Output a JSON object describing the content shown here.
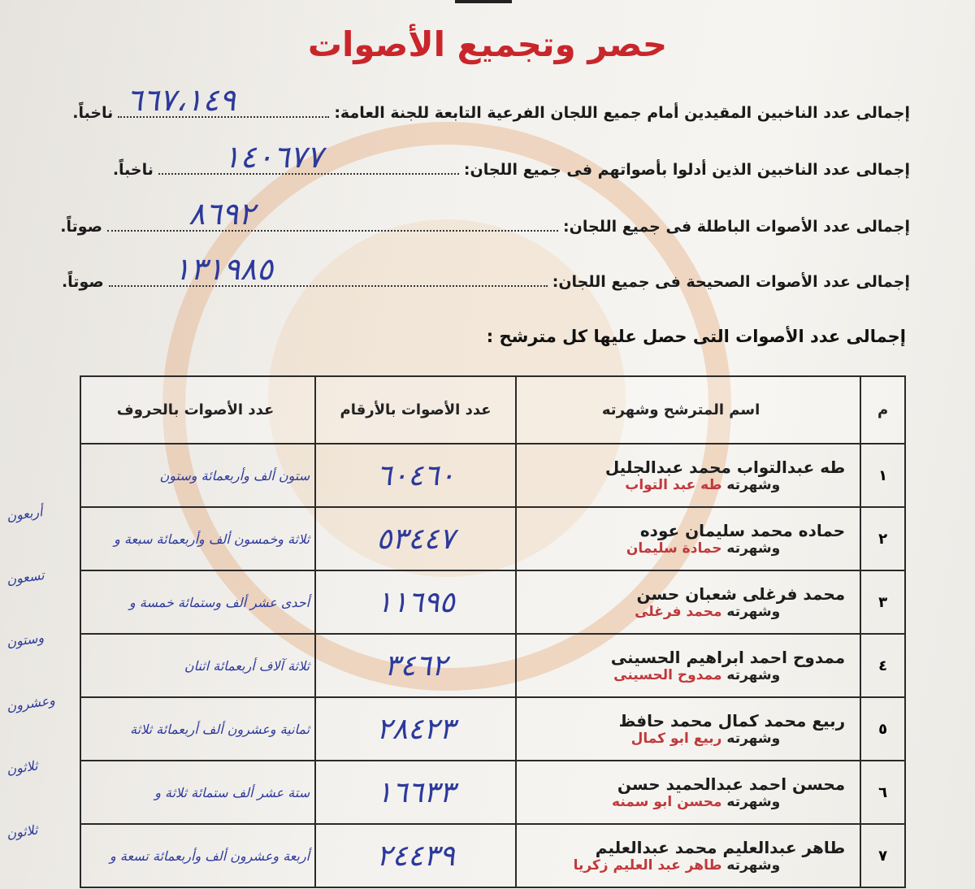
{
  "title": "حصر وتجميع الأصوات",
  "summary": [
    {
      "label": "إجمالى عدد الناخبين المقيدين  أمام جميع اللجان الفرعية التابعة للجنة العامة:",
      "value": "٦٦٧،١٤٩",
      "unit": "ناخباً."
    },
    {
      "label": "إجمالى عدد الناخبين الذين أدلوا بأصواتهم فى جميع اللجان:",
      "value": "١٤٠٦٧٧",
      "unit": "ناخباً."
    },
    {
      "label": "إجمالى عدد الأصوات الباطلة فى جميع اللجان:",
      "value": "٨٦٩٢",
      "unit": "صوتاً."
    },
    {
      "label": "إجمالى عدد الأصوات الصحيحة فى جميع اللجان:",
      "value": "١٣١٩٨٥",
      "unit": "صوتاً."
    }
  ],
  "candidates_heading": "إجمالى عدد الأصوات التى حصل عليها كل مترشح :",
  "table": {
    "headers": [
      "م",
      "اسم المترشح وشهرته",
      "عدد الأصوات بالأرقام",
      "عدد الأصوات بالحروف"
    ],
    "nick_prefix": "وشهرته",
    "rows": [
      {
        "num": "١",
        "name": "طه عبدالتواب محمد عبدالجليل",
        "nick": "طه عبد التواب",
        "digits": "٦٠٤٦٠",
        "words": "ستون ألف وأربعمائة وستون",
        "overflow": ""
      },
      {
        "num": "٢",
        "name": "حماده محمد سليمان عوده",
        "nick": "حمادة سليمان",
        "digits": "٥٣٤٤٧",
        "words": "ثلاثة وخمسون ألف وأربعمائة سبعة و",
        "overflow": "أربعون"
      },
      {
        "num": "٣",
        "name": "محمد فرغلى شعبان حسن",
        "nick": "محمد فرغلى",
        "digits": "١١٦٩٥",
        "words": "أحدى عشر ألف وستمائة خمسة و",
        "overflow": "تسعون"
      },
      {
        "num": "٤",
        "name": "ممدوح احمد ابراهيم الحسينى",
        "nick": "ممدوح الحسينى",
        "digits": "٣٤٦٢",
        "words": "ثلاثة آلاف أربعمائة اثنان",
        "overflow": "وستون"
      },
      {
        "num": "٥",
        "name": "ربيع محمد كمال محمد حافظ",
        "nick": "ربيع ابو كمال",
        "digits": "٢٨٤٢٣",
        "words": "ثمانية وعشرون ألف أربعمائة ثلاثة",
        "overflow": "وعشرون"
      },
      {
        "num": "٦",
        "name": "محسن احمد عبدالحميد حسن",
        "nick": "محسن ابو سمنه",
        "digits": "١٦٦٣٣",
        "words": "ستة عشر ألف ستمائة ثلاثة و",
        "overflow": "ثلاثون"
      },
      {
        "num": "٧",
        "name": "طاهر عبدالعليم محمد عبدالعليم",
        "nick": "طاهر عبد العليم زكريا",
        "digits": "٢٤٤٣٩",
        "words": "أربعة وعشرون ألف وأربعمائة تسعة و",
        "overflow": "ثلاثون"
      }
    ]
  },
  "colors": {
    "title": "#c8262b",
    "ink": "#2c3a9c",
    "nickname": "#c0393c"
  }
}
